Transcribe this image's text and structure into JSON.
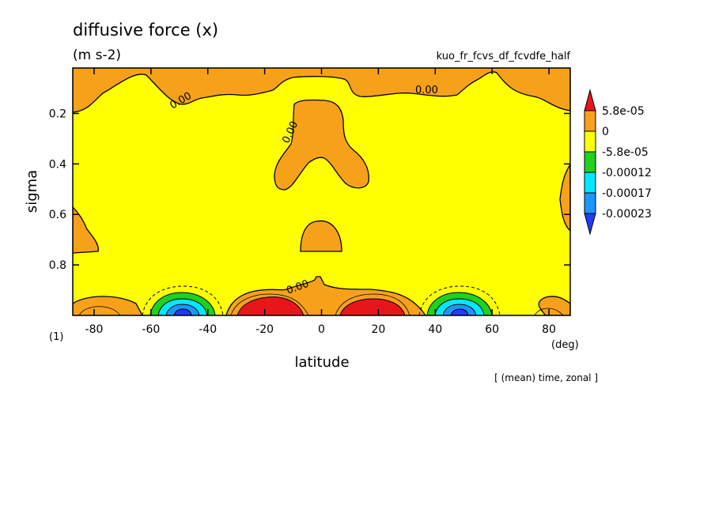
{
  "chart_data": {
    "type": "heatmap",
    "title": "diffusive force (x)",
    "units": "(m s-2)",
    "dataset": "kuo_fr_fcvs_df_fcvdfe_half",
    "footer": "[ (mean) time, zonal ]",
    "panel_label": "(1)",
    "xlabel": "latitude",
    "xunit": "(deg)",
    "ylabel": "sigma",
    "xlim": [
      -87.5,
      87.5
    ],
    "ylim": [
      0.02,
      1.0
    ],
    "y_inverted": true,
    "x_ticks": [
      -80,
      -60,
      -40,
      -20,
      0,
      20,
      40,
      60,
      80
    ],
    "y_ticks": [
      0.2,
      0.4,
      0.6,
      0.8
    ],
    "x_tick_labels": [
      "-80",
      "-60",
      "-40",
      "-20",
      "0",
      "20",
      "40",
      "60",
      "80"
    ],
    "y_tick_labels": [
      "0.2",
      "0.4",
      "0.6",
      "0.8"
    ],
    "colorbar": {
      "levels": [
        "5.8e-05",
        "0",
        "-5.8e-05",
        "-0.00012",
        "-0.00017",
        "-0.00023"
      ],
      "colors": [
        "#e8161b",
        "#f7a11b",
        "#ffff00",
        "#1ed21e",
        "#00e8ff",
        "#1e96ff",
        "#1e3cff"
      ]
    },
    "contour_labels": [
      {
        "text": "0.00",
        "lat": -49,
        "sigma": 0.16
      },
      {
        "text": "0.00",
        "lat": 37,
        "sigma": 0.12
      },
      {
        "text": "0.00",
        "lat": -10,
        "sigma": 0.28
      },
      {
        "text": "0.00",
        "lat": -8,
        "sigma": 0.9
      }
    ],
    "positive_regions": [
      {
        "lat_center": -20,
        "sigma_center": 0.975,
        "value": 8e-05
      },
      {
        "lat_center": 20,
        "sigma_center": 0.975,
        "value": 8e-05
      }
    ],
    "negative_regions": [
      {
        "lat_center": -48,
        "sigma_center": 0.98,
        "value": -0.00028
      },
      {
        "lat_center": 52,
        "sigma_center": 0.98,
        "value": -0.00028
      }
    ]
  }
}
